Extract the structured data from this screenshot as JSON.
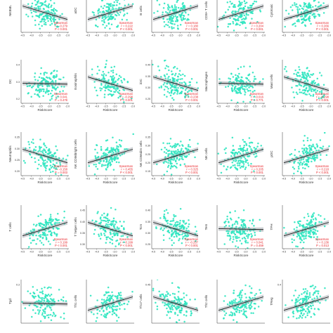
{
  "colors": {
    "points": "#2ee6c0",
    "fit_line": "#1a1a1a",
    "ci_band": "#9aa0a6",
    "stat_text": "#e8262b",
    "axis": "#333333"
  },
  "chart_data": [
    {
      "type": "scatter",
      "ylabel": "NKBML",
      "xlabel": "",
      "yticks": [
        "0.4"
      ],
      "xticks": [
        "-4.5",
        "-4.0",
        "-3.5",
        "-3.0",
        "-2.5",
        "-2.0"
      ],
      "method": "Spearman",
      "r": "r = -0.279",
      "p": "P < 0.001",
      "trend": "down"
    },
    {
      "type": "scatter",
      "ylabel": "aDC",
      "xlabel": "",
      "yticks": [],
      "xticks": [
        "-4.5",
        "-4.0",
        "-3.5",
        "-3.0",
        "-2.5",
        "-2.0"
      ],
      "method": "Spearman",
      "r": "r = 0.222",
      "p": "P < 0.001",
      "trend": "up"
    },
    {
      "type": "scatter",
      "ylabel": "B cells",
      "xlabel": "",
      "yticks": [],
      "xticks": [
        "-4.5",
        "-4.0",
        "-3.5",
        "-3.0",
        "-2.5",
        "-2.0"
      ],
      "method": "Spearman",
      "r": "r = 0.180",
      "p": "P < 0.001",
      "trend": "up"
    },
    {
      "type": "scatter",
      "ylabel": "CD8+ T cells",
      "xlabel": "",
      "yticks": [],
      "xticks": [
        "-4.5",
        "-4.0",
        "-3.5",
        "-3.0",
        "-2.5",
        "-2.0"
      ],
      "method": "Spearman",
      "r": "r = 0.204",
      "p": "P < 0.001",
      "trend": "up"
    },
    {
      "type": "scatter",
      "ylabel": "Cytotoxic",
      "xlabel": "",
      "yticks": [],
      "xticks": [
        "-4.5",
        "-4.0",
        "-3.5",
        "-3.0",
        "-2.5",
        "-2.0"
      ],
      "method": "Spearman",
      "r": "r = 0.266",
      "p": "P < 0.001",
      "trend": "up"
    },
    {
      "type": "scatter",
      "ylabel": "DC",
      "xlabel": "RiskScore",
      "yticks": [
        "0.4",
        "0.3",
        "0.2"
      ],
      "xticks": [
        "-4.5",
        "-4.0",
        "-3.5",
        "-3.0",
        "-2.5",
        "-2.0"
      ],
      "method": "Spearman",
      "r": "r = 0.041",
      "p": "P = 0.478",
      "trend": "flat"
    },
    {
      "type": "scatter",
      "ylabel": "Eosinophils",
      "xlabel": "RiskScore",
      "yticks": [],
      "xticks": [
        "-4.5",
        "-4.0",
        "-3.5",
        "-3.0",
        "-2.5",
        "-2.0"
      ],
      "method": "Spearman",
      "r": "r = -0.298",
      "p": "P < 0.001",
      "trend": "down"
    },
    {
      "type": "scatter",
      "ylabel": "iDC",
      "xlabel": "RiskScore",
      "yticks": [
        "0.40",
        "0.35",
        "0.30",
        "0.25"
      ],
      "xticks": [
        "-4.5",
        "-4.0",
        "-3.5",
        "-3.0",
        "-2.5",
        "-2.0"
      ],
      "method": "Spearman",
      "r": "r = -0.238",
      "p": "P < 0.001",
      "trend": "down"
    },
    {
      "type": "scatter",
      "ylabel": "Macrophages",
      "xlabel": "RiskScore",
      "yticks": [],
      "xticks": [
        "-4.5",
        "-4.0",
        "-3.5",
        "-3.0",
        "-2.5",
        "-2.0"
      ],
      "method": "Spearman",
      "r": "r = -0.016",
      "p": "P = 0.771",
      "trend": "flat"
    },
    {
      "type": "scatter",
      "ylabel": "Mast cells",
      "xlabel": "RiskScore",
      "yticks": [],
      "xticks": [
        "-4.5",
        "-4.0",
        "-3.5",
        "-3.0",
        "-2.5",
        "-2.0"
      ],
      "method": "Spearman",
      "r": "r = -0.298",
      "p": "P < 0.001",
      "trend": "down"
    },
    {
      "type": "scatter",
      "ylabel": "Neutrophils",
      "xlabel": "RiskScore",
      "yticks": [
        "0.35",
        "0.30",
        "0.25",
        "0.20"
      ],
      "xticks": [
        "-4.5",
        "-4.0",
        "-3.5",
        "-3.0",
        "-2.5",
        "-2.0"
      ],
      "method": "Spearman",
      "r": "r = -0.158",
      "p": "P = 0.003",
      "trend": "down"
    },
    {
      "type": "scatter",
      "ylabel": "NK CD56bright cells",
      "xlabel": "RiskScore",
      "yticks": [],
      "xticks": [
        "-4.5",
        "-4.0",
        "-3.5",
        "-3.0",
        "-2.5",
        "-2.0"
      ],
      "method": "Spearman",
      "r": "r = 0.455",
      "p": "P < 0.001",
      "trend": "up"
    },
    {
      "type": "scatter",
      "ylabel": "NK CD56dim cells",
      "xlabel": "RiskScore",
      "yticks": [
        "0.35",
        "0.30",
        "0.25",
        "0.20",
        "0.15"
      ],
      "xticks": [
        "-4.5",
        "-4.0",
        "-3.5",
        "-3.0",
        "-2.5",
        "-2.0"
      ],
      "method": "Spearman",
      "r": "r = 0.325",
      "p": "P < 0.001",
      "trend": "up"
    },
    {
      "type": "scatter",
      "ylabel": "NK cells",
      "xlabel": "RiskScore",
      "yticks": [],
      "xticks": [
        "-4.5",
        "-4.0",
        "-3.5",
        "-3.0",
        "-2.5",
        "-2.0"
      ],
      "method": "Spearman",
      "r": "r = 0.205",
      "p": "P < 0.001",
      "trend": "up"
    },
    {
      "type": "scatter",
      "ylabel": "pDC",
      "xlabel": "RiskScore",
      "yticks": [],
      "xticks": [
        "-4.5",
        "-4.0",
        "-3.5",
        "-3.0",
        "-2.5",
        "-2.0"
      ],
      "method": "Spearman",
      "r": "r = 0.218",
      "p": "P < 0.001",
      "trend": "up"
    },
    {
      "type": "scatter",
      "ylabel": "T cells",
      "xlabel": "RiskScore",
      "yticks": [],
      "xticks": [
        "-4.5",
        "-4.0",
        "-3.5",
        "-3.0",
        "-2.5",
        "-2.0"
      ],
      "method": "Spearman",
      "r": "r = 0.199",
      "p": "P < 0.001",
      "trend": "up"
    },
    {
      "type": "scatter",
      "ylabel": "T helper cells",
      "xlabel": "RiskScore",
      "yticks": [
        "0.45",
        "0.40",
        "0.35",
        "0.30"
      ],
      "xticks": [
        "-4.5",
        "-4.0",
        "-3.5",
        "-3.0",
        "-2.5",
        "-2.0"
      ],
      "method": "Spearman",
      "r": "r = -0.199",
      "p": "P < 0.001",
      "trend": "down"
    },
    {
      "type": "scatter",
      "ylabel": "Tcm",
      "xlabel": "RiskScore",
      "yticks": [
        "0.40",
        "0.35",
        "0.30",
        "0.25"
      ],
      "xticks": [
        "-4.5",
        "-4.0",
        "-3.5",
        "-3.0",
        "-2.5",
        "-2.0"
      ],
      "method": "Spearman",
      "r": "r = -0.257",
      "p": "P < 0.001",
      "trend": "down"
    },
    {
      "type": "scatter",
      "ylabel": "Tem",
      "xlabel": "RiskScore",
      "yticks": [],
      "xticks": [
        "-4.5",
        "-4.0",
        "-3.5",
        "-3.0",
        "-2.5",
        "-2.0"
      ],
      "method": "Spearman",
      "r": "r = 0.041",
      "p": "P = 0.459",
      "trend": "flat"
    },
    {
      "type": "scatter",
      "ylabel": "TFH",
      "xlabel": "RiskScore",
      "yticks": [],
      "xticks": [
        "-4.5",
        "-4.0",
        "-3.5",
        "-3.0",
        "-2.5",
        "-2.0"
      ],
      "method": "Spearman",
      "r": "r = 0.136",
      "p": "P = 0.013",
      "trend": "up"
    },
    {
      "type": "scatter",
      "ylabel": "Tgd",
      "xlabel": "",
      "yticks": [
        "0.3"
      ],
      "xticks": [],
      "method": "",
      "r": "",
      "p": "",
      "trend": "flat"
    },
    {
      "type": "scatter",
      "ylabel": "Th1 cells",
      "xlabel": "",
      "yticks": [],
      "xticks": [],
      "method": "",
      "r": "",
      "p": "",
      "trend": "up"
    },
    {
      "type": "scatter",
      "ylabel": "Th17 cells",
      "xlabel": "",
      "yticks": [
        "0.45"
      ],
      "xticks": [],
      "method": "",
      "r": "",
      "p": "",
      "trend": "down"
    },
    {
      "type": "scatter",
      "ylabel": "Th2 cells",
      "xlabel": "",
      "yticks": [],
      "xticks": [],
      "method": "",
      "r": "",
      "p": "",
      "trend": "up"
    },
    {
      "type": "scatter",
      "ylabel": "TReg",
      "xlabel": "",
      "yticks": [
        "0.4"
      ],
      "xticks": [],
      "method": "",
      "r": "",
      "p": "",
      "trend": "up"
    }
  ]
}
